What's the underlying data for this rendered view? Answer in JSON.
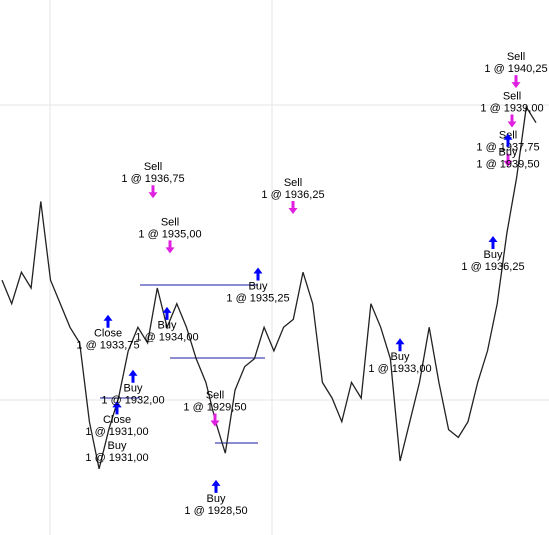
{
  "chart_data": {
    "type": "line",
    "color": "#222222",
    "ylim": [
      1926.4,
      1943.4
    ],
    "values": [
      1934.5,
      1933.75,
      1934.75,
      1934.25,
      1937,
      1934.5,
      1933.75,
      1933,
      1932.5,
      1930,
      1928.5,
      1929.75,
      1930.75,
      1932.25,
      1933,
      1932.5,
      1934.25,
      1933,
      1933.75,
      1933,
      1932,
      1931.25,
      1930,
      1929,
      1931,
      1931.75,
      1932,
      1933,
      1932.25,
      1933,
      1933.25,
      1934.75,
      1933.75,
      1931.25,
      1930.75,
      1930,
      1931.25,
      1930.75,
      1933.75,
      1933,
      1932,
      1928.75,
      1930,
      1931.25,
      1933,
      1931.25,
      1929.75,
      1929.5,
      1930,
      1931.25,
      1932.25,
      1933.75,
      1936,
      1937.75,
      1940,
      1939.5
    ],
    "buy_color": "#0000ff",
    "sell_color": "#e020e0",
    "trades": [
      {
        "action": "Sell",
        "label": "1 @ 1936,75",
        "price": 1936.75
      },
      {
        "action": "Sell",
        "label": "1 @ 1935,00",
        "price": 1935.0
      },
      {
        "action": "Sell",
        "label": "1 @ 1936,25",
        "price": 1936.25
      },
      {
        "action": "Buy",
        "label": "1 @ 1934,00",
        "price": 1934.0
      },
      {
        "action": "Sell",
        "label": "1 @ 1929,50",
        "price": 1929.5
      },
      {
        "action": "Buy",
        "label": "1 @ 1928,50",
        "price": 1928.5
      },
      {
        "action": "Buy",
        "label": "1 @ 1931,00",
        "price": 1931.0
      },
      {
        "action": "Close",
        "label": "1 @ 1931,00",
        "price": 1931.0
      },
      {
        "action": "Buy",
        "label": "1 @ 1932,00",
        "price": 1932.0
      },
      {
        "action": "Buy",
        "label": "1 @ 1935,25",
        "price": 1935.25
      },
      {
        "action": "Buy",
        "label": "1 @ 1933,00",
        "price": 1933.0
      },
      {
        "action": "Buy",
        "label": "1 @ 1936,25",
        "price": 1936.25
      },
      {
        "action": "Sell",
        "label": "1 @ 1940,25",
        "price": 1940.25
      },
      {
        "action": "Sell",
        "label": "1 @ 1939,00",
        "price": 1939.0
      },
      {
        "action": "Sell",
        "label": "1 @ 1937,75",
        "price": 1937.75
      },
      {
        "action": "Buy",
        "label": "1 @ 1939,50",
        "price": 1939.5
      },
      {
        "action": "Close",
        "label": "1 @ 1933,75",
        "price": 1933.75
      }
    ]
  }
}
